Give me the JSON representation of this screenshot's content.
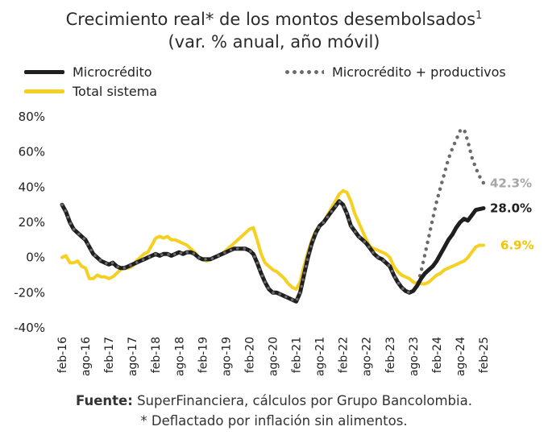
{
  "title_line1": "Crecimiento real* de los montos desembolsados",
  "title_sup": "1",
  "title_line2": "(var. % anual, año móvil)",
  "legend": {
    "micro": "Microcrédito",
    "total": "Total sistema",
    "micro_prod": "Microcrédito + productivos"
  },
  "footer": {
    "source_label": "Fuente:",
    "source_text": "SuperFinanciera, cálculos por Grupo Bancolombia.",
    "note": "* Deflactado por inflación sin alimentos."
  },
  "colors": {
    "micro": "#1f1f1f",
    "total": "#f5d020",
    "micro_prod": "#6b6b6b",
    "label_prod": "#a6a6a6",
    "label_total": "#f2c500"
  },
  "chart_data": {
    "type": "line",
    "y_tick_labels": [
      "80%",
      "60%",
      "40%",
      "20%",
      "0%",
      "-20%",
      "-40%"
    ],
    "y_ticks": [
      80,
      60,
      40,
      20,
      0,
      -20,
      -40
    ],
    "ylim": [
      -40,
      80
    ],
    "x_tick_labels": [
      "feb-16",
      "ago-16",
      "feb-17",
      "ago-17",
      "feb-18",
      "ago-18",
      "feb-19",
      "ago-19",
      "feb-20",
      "ago-20",
      "feb-21",
      "ago-21",
      "feb-22",
      "ago-22",
      "feb-23",
      "ago-23",
      "feb-24",
      "ago-24",
      "feb-25"
    ],
    "x_ticks": [
      "2016-02",
      "2016-08",
      "2017-02",
      "2017-08",
      "2018-02",
      "2018-08",
      "2019-02",
      "2019-08",
      "2020-02",
      "2020-08",
      "2021-02",
      "2021-08",
      "2022-02",
      "2022-08",
      "2023-02",
      "2023-08",
      "2024-02",
      "2024-08",
      "2025-02"
    ],
    "xlim": [
      "2016-02",
      "2025-02"
    ],
    "end_labels": {
      "micro_prod": "42.3%",
      "micro": "28.0%",
      "total": "6.9%"
    },
    "series": [
      {
        "key": "total",
        "name": "Total sistema",
        "points": [
          [
            "2016-02",
            0
          ],
          [
            "2016-03",
            1
          ],
          [
            "2016-04",
            -3
          ],
          [
            "2016-05",
            -3
          ],
          [
            "2016-06",
            -2
          ],
          [
            "2016-07",
            -5
          ],
          [
            "2016-08",
            -6
          ],
          [
            "2016-09",
            -12
          ],
          [
            "2016-10",
            -12
          ],
          [
            "2016-11",
            -10
          ],
          [
            "2016-12",
            -11
          ],
          [
            "2017-01",
            -11
          ],
          [
            "2017-02",
            -12
          ],
          [
            "2017-03",
            -11
          ],
          [
            "2017-04",
            -9
          ],
          [
            "2017-05",
            -7
          ],
          [
            "2017-06",
            -6
          ],
          [
            "2017-07",
            -6
          ],
          [
            "2017-08",
            -5
          ],
          [
            "2017-09",
            -2
          ],
          [
            "2017-10",
            0
          ],
          [
            "2017-11",
            2
          ],
          [
            "2017-12",
            3
          ],
          [
            "2018-01",
            7
          ],
          [
            "2018-02",
            11
          ],
          [
            "2018-03",
            12
          ],
          [
            "2018-04",
            11
          ],
          [
            "2018-05",
            12
          ],
          [
            "2018-06",
            10
          ],
          [
            "2018-07",
            10
          ],
          [
            "2018-08",
            9
          ],
          [
            "2018-09",
            8
          ],
          [
            "2018-10",
            7
          ],
          [
            "2018-11",
            5
          ],
          [
            "2018-12",
            3
          ],
          [
            "2019-01",
            0
          ],
          [
            "2019-02",
            -1
          ],
          [
            "2019-03",
            -2
          ],
          [
            "2019-04",
            -1
          ],
          [
            "2019-05",
            0
          ],
          [
            "2019-06",
            1
          ],
          [
            "2019-07",
            2
          ],
          [
            "2019-08",
            4
          ],
          [
            "2019-09",
            6
          ],
          [
            "2019-10",
            8
          ],
          [
            "2019-11",
            10
          ],
          [
            "2019-12",
            12
          ],
          [
            "2020-01",
            14
          ],
          [
            "2020-02",
            16
          ],
          [
            "2020-03",
            17
          ],
          [
            "2020-04",
            10
          ],
          [
            "2020-05",
            2
          ],
          [
            "2020-06",
            -3
          ],
          [
            "2020-07",
            -5
          ],
          [
            "2020-08",
            -7
          ],
          [
            "2020-09",
            -8
          ],
          [
            "2020-10",
            -10
          ],
          [
            "2020-11",
            -12
          ],
          [
            "2020-12",
            -15
          ],
          [
            "2021-01",
            -17
          ],
          [
            "2021-02",
            -18
          ],
          [
            "2021-03",
            -14
          ],
          [
            "2021-04",
            -5
          ],
          [
            "2021-05",
            3
          ],
          [
            "2021-06",
            10
          ],
          [
            "2021-07",
            15
          ],
          [
            "2021-08",
            18
          ],
          [
            "2021-09",
            20
          ],
          [
            "2021-10",
            24
          ],
          [
            "2021-11",
            28
          ],
          [
            "2021-12",
            32
          ],
          [
            "2022-01",
            36
          ],
          [
            "2022-02",
            38
          ],
          [
            "2022-03",
            37
          ],
          [
            "2022-04",
            32
          ],
          [
            "2022-05",
            25
          ],
          [
            "2022-06",
            20
          ],
          [
            "2022-07",
            15
          ],
          [
            "2022-08",
            10
          ],
          [
            "2022-09",
            6
          ],
          [
            "2022-10",
            5
          ],
          [
            "2022-11",
            4
          ],
          [
            "2022-12",
            3
          ],
          [
            "2023-01",
            2
          ],
          [
            "2023-02",
            0
          ],
          [
            "2023-03",
            -5
          ],
          [
            "2023-04",
            -8
          ],
          [
            "2023-05",
            -10
          ],
          [
            "2023-06",
            -11
          ],
          [
            "2023-07",
            -12
          ],
          [
            "2023-08",
            -14
          ],
          [
            "2023-09",
            -15
          ],
          [
            "2023-10",
            -15
          ],
          [
            "2023-11",
            -15
          ],
          [
            "2023-12",
            -14
          ],
          [
            "2024-01",
            -12
          ],
          [
            "2024-02",
            -10
          ],
          [
            "2024-03",
            -9
          ],
          [
            "2024-04",
            -7
          ],
          [
            "2024-05",
            -6
          ],
          [
            "2024-06",
            -5
          ],
          [
            "2024-07",
            -4
          ],
          [
            "2024-08",
            -3
          ],
          [
            "2024-09",
            -2
          ],
          [
            "2024-10",
            0
          ],
          [
            "2024-11",
            3
          ],
          [
            "2024-12",
            6
          ],
          [
            "2025-01",
            7
          ],
          [
            "2025-02",
            6.9
          ]
        ]
      },
      {
        "key": "micro_prod",
        "name": "Microcrédito + productivos",
        "points": [
          [
            "2023-02",
            -5
          ],
          [
            "2023-03",
            -10
          ],
          [
            "2023-04",
            -14
          ],
          [
            "2023-05",
            -17
          ],
          [
            "2023-06",
            -19
          ],
          [
            "2023-07",
            -20
          ],
          [
            "2023-08",
            -19
          ],
          [
            "2023-09",
            -16
          ],
          [
            "2023-10",
            -8
          ],
          [
            "2023-11",
            2
          ],
          [
            "2023-12",
            12
          ],
          [
            "2024-01",
            22
          ],
          [
            "2024-02",
            32
          ],
          [
            "2024-03",
            40
          ],
          [
            "2024-04",
            48
          ],
          [
            "2024-05",
            56
          ],
          [
            "2024-06",
            62
          ],
          [
            "2024-07",
            67
          ],
          [
            "2024-08",
            72
          ],
          [
            "2024-09",
            73
          ],
          [
            "2024-10",
            66
          ],
          [
            "2024-11",
            57
          ],
          [
            "2024-12",
            51
          ],
          [
            "2025-01",
            46
          ],
          [
            "2025-02",
            42.3
          ]
        ]
      },
      {
        "key": "micro",
        "name": "Microcrédito",
        "points": [
          [
            "2016-02",
            30
          ],
          [
            "2016-03",
            26
          ],
          [
            "2016-04",
            20
          ],
          [
            "2016-05",
            16
          ],
          [
            "2016-06",
            14
          ],
          [
            "2016-07",
            12
          ],
          [
            "2016-08",
            10
          ],
          [
            "2016-09",
            6
          ],
          [
            "2016-10",
            2
          ],
          [
            "2016-11",
            0
          ],
          [
            "2016-12",
            -2
          ],
          [
            "2017-01",
            -3
          ],
          [
            "2017-02",
            -4
          ],
          [
            "2017-03",
            -3
          ],
          [
            "2017-04",
            -5
          ],
          [
            "2017-05",
            -6
          ],
          [
            "2017-06",
            -6
          ],
          [
            "2017-07",
            -5
          ],
          [
            "2017-08",
            -4
          ],
          [
            "2017-09",
            -3
          ],
          [
            "2017-10",
            -2
          ],
          [
            "2017-11",
            -1
          ],
          [
            "2017-12",
            0
          ],
          [
            "2018-01",
            1
          ],
          [
            "2018-02",
            2
          ],
          [
            "2018-03",
            1
          ],
          [
            "2018-04",
            2
          ],
          [
            "2018-05",
            2
          ],
          [
            "2018-06",
            1
          ],
          [
            "2018-07",
            2
          ],
          [
            "2018-08",
            3
          ],
          [
            "2018-09",
            2
          ],
          [
            "2018-10",
            3
          ],
          [
            "2018-11",
            3
          ],
          [
            "2018-12",
            2
          ],
          [
            "2019-01",
            0
          ],
          [
            "2019-02",
            -1
          ],
          [
            "2019-03",
            -1
          ],
          [
            "2019-04",
            -1
          ],
          [
            "2019-05",
            0
          ],
          [
            "2019-06",
            1
          ],
          [
            "2019-07",
            2
          ],
          [
            "2019-08",
            3
          ],
          [
            "2019-09",
            4
          ],
          [
            "2019-10",
            5
          ],
          [
            "2019-11",
            5
          ],
          [
            "2019-12",
            5
          ],
          [
            "2020-01",
            5
          ],
          [
            "2020-02",
            4
          ],
          [
            "2020-03",
            2
          ],
          [
            "2020-04",
            -3
          ],
          [
            "2020-05",
            -9
          ],
          [
            "2020-06",
            -14
          ],
          [
            "2020-07",
            -18
          ],
          [
            "2020-08",
            -20
          ],
          [
            "2020-09",
            -20
          ],
          [
            "2020-10",
            -21
          ],
          [
            "2020-11",
            -22
          ],
          [
            "2020-12",
            -23
          ],
          [
            "2021-01",
            -24
          ],
          [
            "2021-02",
            -25
          ],
          [
            "2021-03",
            -20
          ],
          [
            "2021-04",
            -10
          ],
          [
            "2021-05",
            0
          ],
          [
            "2021-06",
            8
          ],
          [
            "2021-07",
            14
          ],
          [
            "2021-08",
            18
          ],
          [
            "2021-09",
            20
          ],
          [
            "2021-10",
            23
          ],
          [
            "2021-11",
            26
          ],
          [
            "2021-12",
            29
          ],
          [
            "2022-01",
            32
          ],
          [
            "2022-02",
            30
          ],
          [
            "2022-03",
            25
          ],
          [
            "2022-04",
            18
          ],
          [
            "2022-05",
            15
          ],
          [
            "2022-06",
            12
          ],
          [
            "2022-07",
            10
          ],
          [
            "2022-08",
            8
          ],
          [
            "2022-09",
            5
          ],
          [
            "2022-10",
            2
          ],
          [
            "2022-11",
            0
          ],
          [
            "2022-12",
            -1
          ],
          [
            "2023-01",
            -3
          ],
          [
            "2023-02",
            -5
          ],
          [
            "2023-03",
            -10
          ],
          [
            "2023-04",
            -14
          ],
          [
            "2023-05",
            -17
          ],
          [
            "2023-06",
            -19
          ],
          [
            "2023-07",
            -20
          ],
          [
            "2023-08",
            -19
          ],
          [
            "2023-09",
            -16
          ],
          [
            "2023-10",
            -12
          ],
          [
            "2023-11",
            -9
          ],
          [
            "2023-12",
            -7
          ],
          [
            "2024-01",
            -5
          ],
          [
            "2024-02",
            -2
          ],
          [
            "2024-03",
            2
          ],
          [
            "2024-04",
            6
          ],
          [
            "2024-05",
            10
          ],
          [
            "2024-06",
            13
          ],
          [
            "2024-07",
            17
          ],
          [
            "2024-08",
            20
          ],
          [
            "2024-09",
            22
          ],
          [
            "2024-10",
            21
          ],
          [
            "2024-11",
            24
          ],
          [
            "2024-12",
            27
          ],
          [
            "2025-01",
            27.5
          ],
          [
            "2025-02",
            28
          ]
        ]
      }
    ]
  }
}
